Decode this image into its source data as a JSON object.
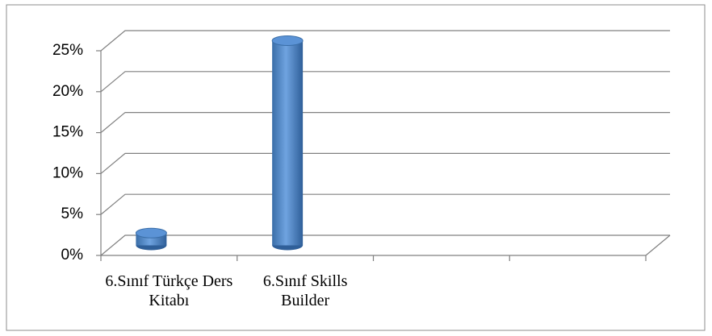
{
  "chart_data": {
    "type": "bar",
    "categories": [
      "6.Sınıf Türkçe Ders Kitabı",
      "6.Sınıf Skills Builder",
      null,
      null
    ],
    "values": [
      1.5,
      25,
      null,
      null
    ],
    "color": "#4f81bd",
    "ylim": [
      0,
      25
    ],
    "yticks": [
      {
        "value": 0,
        "label": "0%"
      },
      {
        "value": 5,
        "label": "5%"
      },
      {
        "value": 10,
        "label": "10%"
      },
      {
        "value": 15,
        "label": "15%"
      },
      {
        "value": 20,
        "label": "20%"
      },
      {
        "value": 25,
        "label": "25%"
      }
    ],
    "grid": true
  }
}
